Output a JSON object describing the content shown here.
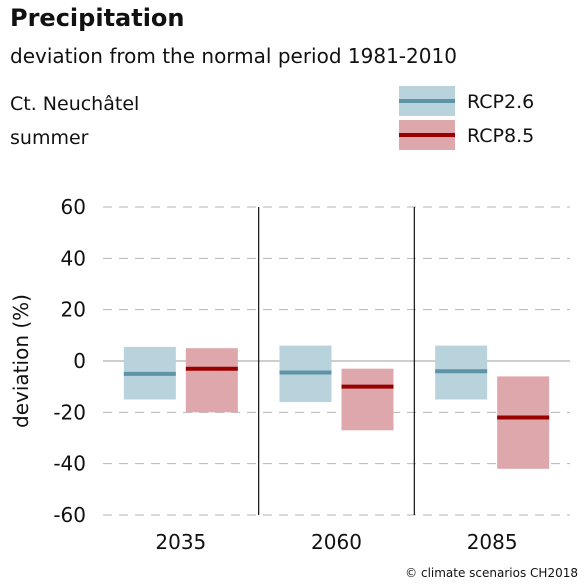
{
  "header": {
    "title": "Precipitation",
    "subtitle": "deviation from the normal period 1981-2010",
    "region": "Ct. Neuchâtel",
    "season": "summer"
  },
  "credit": "© climate scenarios CH2018",
  "colors": {
    "rcp26_band": "#b9d3dc",
    "rcp26_line": "#5f93a8",
    "rcp85_band": "#dea7ab",
    "rcp85_line": "#990000",
    "grid": "#b5b5b5",
    "zero": "#9c9c9c"
  },
  "chart_data": {
    "type": "bar",
    "title": "Precipitation",
    "subtitle": "deviation from the normal period 1981-2010",
    "ylabel": "deviation (%)",
    "xlabel": "",
    "ylim": [
      -60,
      60
    ],
    "yticks": [
      60,
      40,
      20,
      0,
      -20,
      -40,
      -60
    ],
    "grid": true,
    "legend_position": "top-right",
    "categories": [
      "2035",
      "2060",
      "2085"
    ],
    "series": [
      {
        "name": "RCP2.6",
        "color_band": "#b9d3dc",
        "color_line": "#5f93a8",
        "median": [
          -5,
          -4.5,
          -4
        ],
        "low": [
          -15,
          -16,
          -15
        ],
        "high": [
          5.5,
          6,
          6
        ]
      },
      {
        "name": "RCP8.5",
        "color_band": "#dea7ab",
        "color_line": "#990000",
        "median": [
          -3,
          -10,
          -22
        ],
        "low": [
          -20,
          -27,
          -42
        ],
        "high": [
          5,
          -3,
          -6
        ]
      }
    ]
  }
}
